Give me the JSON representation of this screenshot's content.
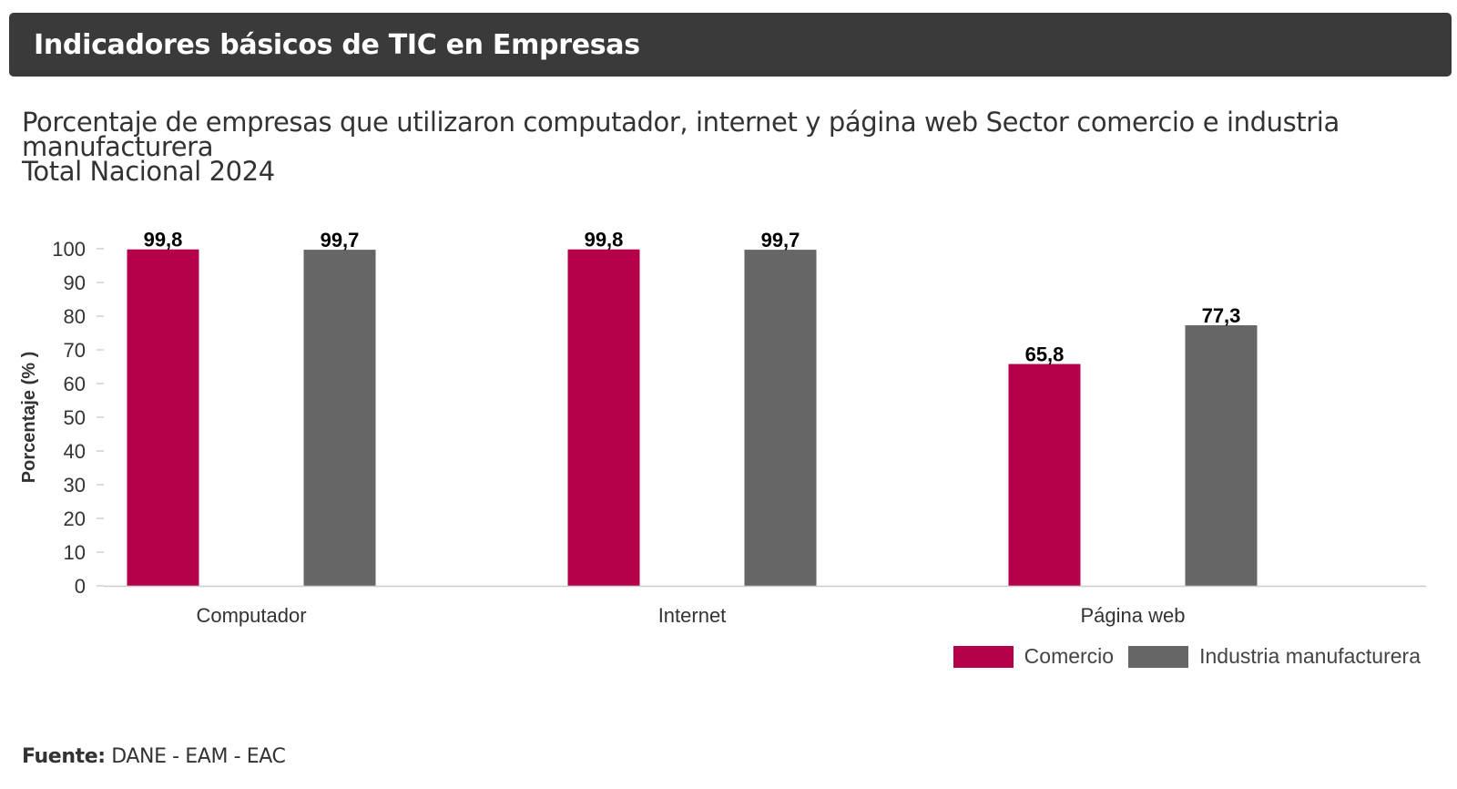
{
  "header": {
    "title": "Indicadores básicos de TIC en Empresas"
  },
  "chart_data": {
    "type": "bar",
    "title_lines": [
      "Porcentaje de empresas que utilizaron computador, internet y página web Sector comercio e industria",
      "manufacturera",
      "Total Nacional 2024"
    ],
    "ylabel": "Porcentaje (% )",
    "xlabel": "",
    "categories": [
      "Computador",
      "Internet",
      "Página web"
    ],
    "ylim": [
      0,
      100
    ],
    "yticks": [
      0,
      10,
      20,
      30,
      40,
      50,
      60,
      70,
      80,
      90,
      100
    ],
    "grid": false,
    "legend_position": "bottom-right",
    "series": [
      {
        "name": "Comercio",
        "color": "#b5004a",
        "values": [
          99.8,
          99.8,
          65.8
        ],
        "labels": [
          "99,8",
          "99,8",
          "65,8"
        ]
      },
      {
        "name": "Industria manufacturera",
        "color": "#666666",
        "values": [
          99.7,
          99.7,
          77.3
        ],
        "labels": [
          "99,7",
          "99,7",
          "77,3"
        ]
      }
    ]
  },
  "source": {
    "label": "Fuente:",
    "text": " DANE - EAM - EAC"
  }
}
